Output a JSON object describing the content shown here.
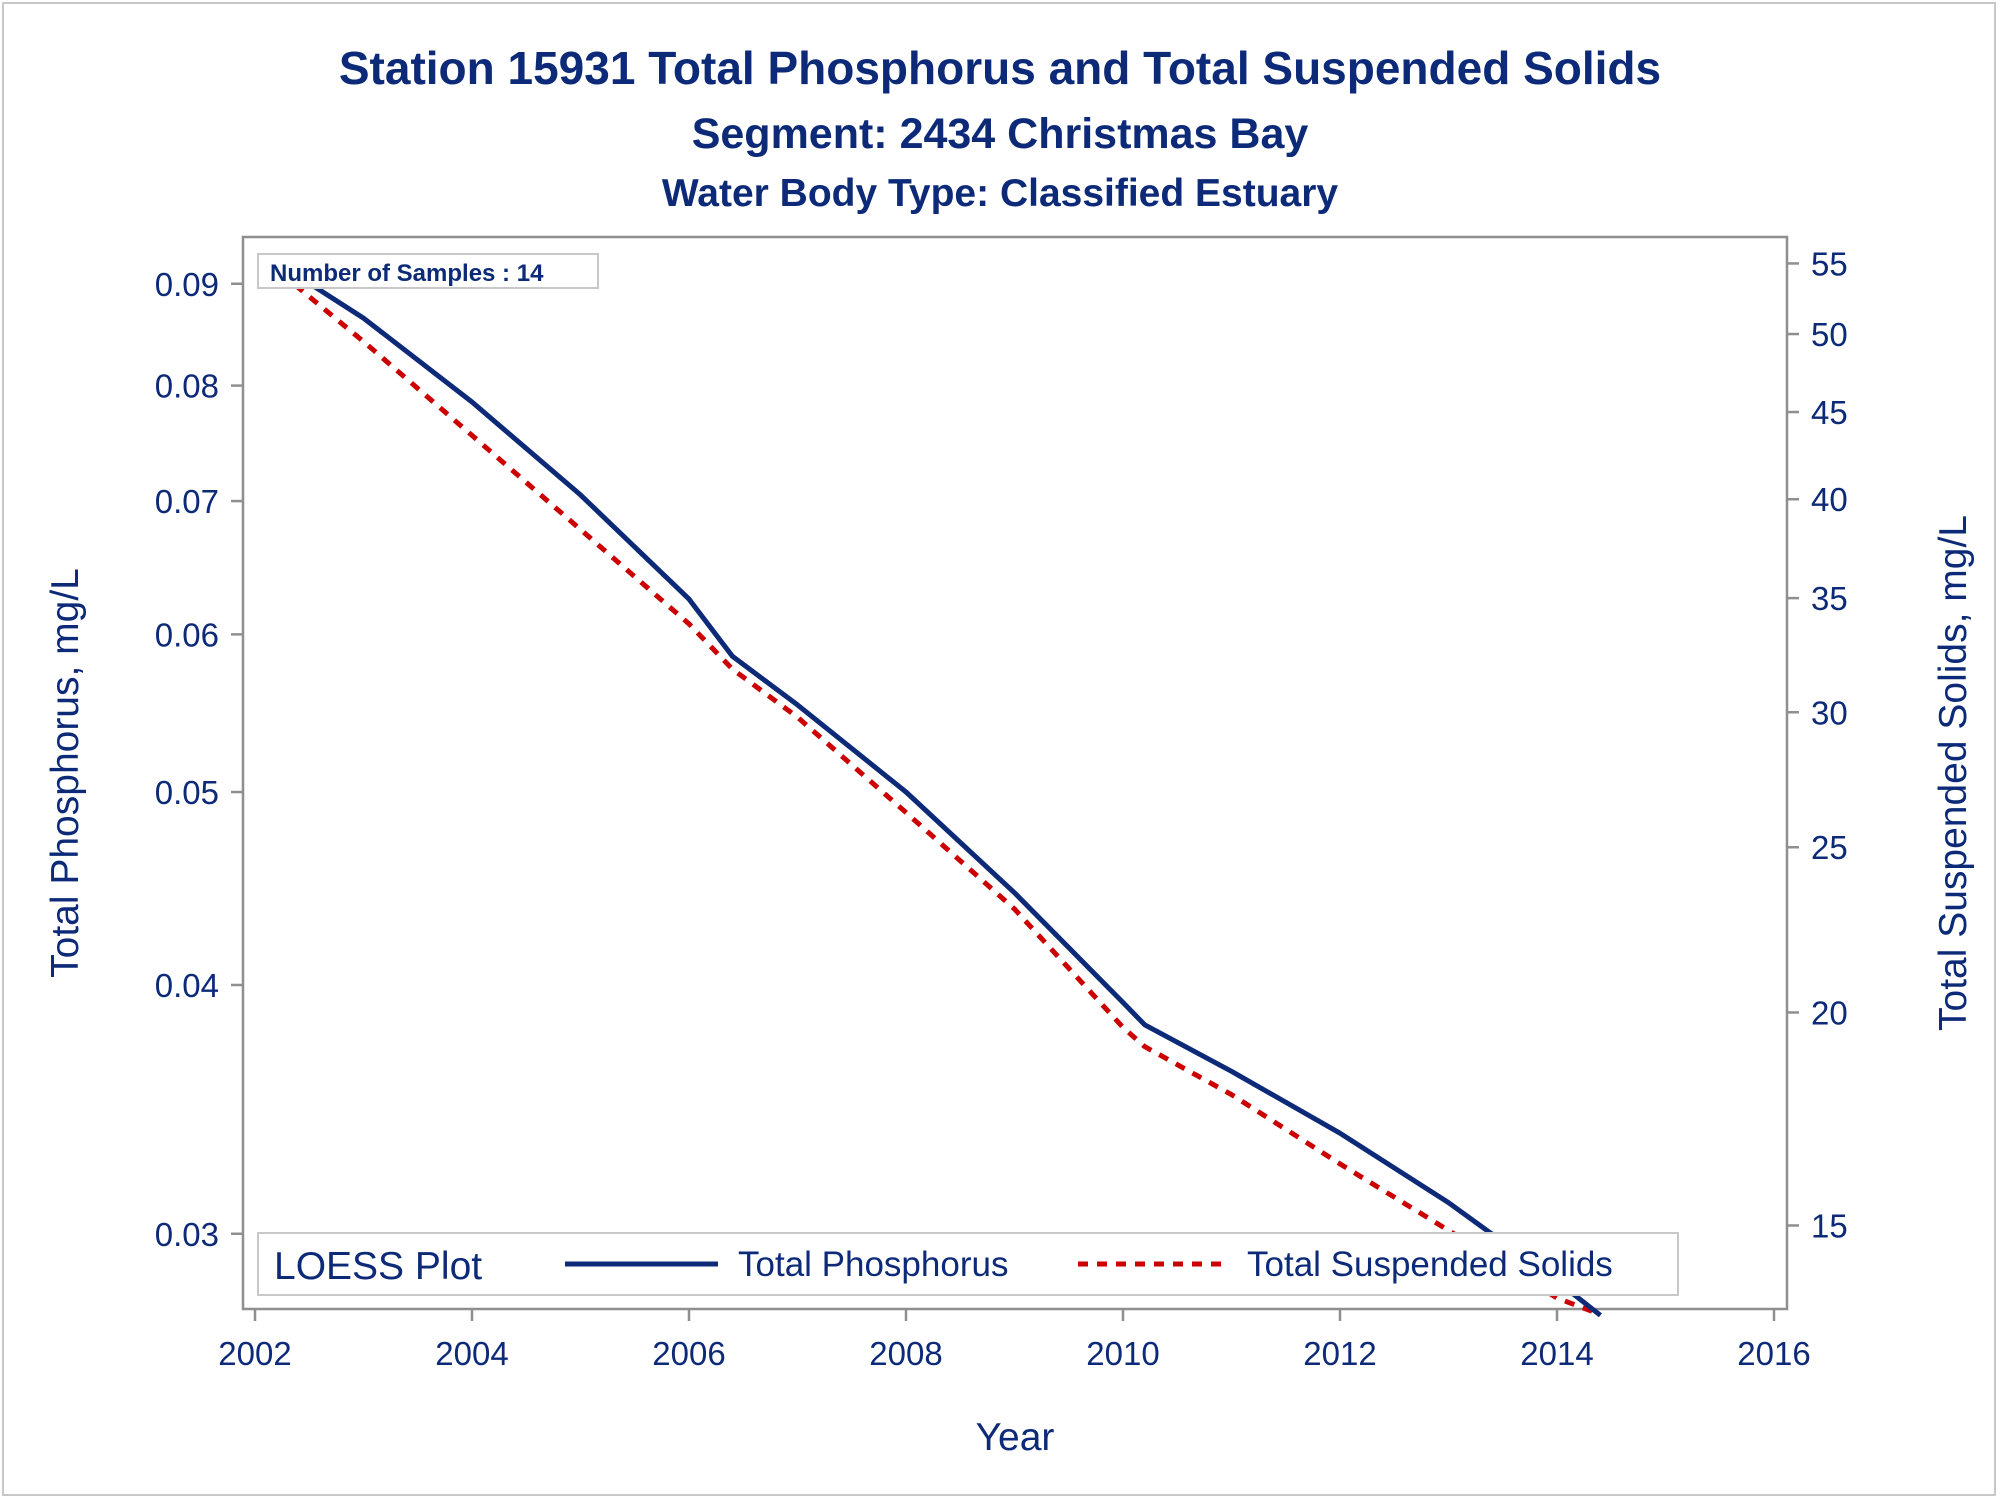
{
  "titles": {
    "line1": "Station 15931  Total Phosphorus and Total Suspended Solids",
    "line2": "Segment: 2434  Christmas Bay",
    "line3": "Water Body Type: Classified Estuary"
  },
  "inset": {
    "text": "Number of Samples : 14"
  },
  "legend": {
    "title": "LOESS Plot",
    "items": [
      {
        "label": "Total Phosphorus"
      },
      {
        "label": "Total Suspended Solids"
      }
    ]
  },
  "colors": {
    "text": "#0c2a78",
    "phosphorus": "#0c2a78",
    "tss": "#cc0000",
    "frame": "#8f8f8f"
  },
  "chart_data": {
    "type": "line",
    "title": "Station 15931  Total Phosphorus and Total Suspended Solids",
    "xlabel": "Year",
    "ylabel": "Total Phosphorus, mg/L",
    "y2label": "Total Suspended Solids, mg/L",
    "y_scale": "log",
    "y2_scale": "log",
    "xlim": [
      2002,
      2016
    ],
    "ylim": [
      0.0275,
      0.095
    ],
    "y2lim": [
      13.4,
      57
    ],
    "x_ticks": [
      "2002",
      "2004",
      "2006",
      "2008",
      "2010",
      "2012",
      "2014",
      "2016"
    ],
    "y_ticks": [
      "0.03",
      "0.04",
      "0.05",
      "0.06",
      "0.07",
      "0.08",
      "0.09"
    ],
    "y2_ticks": [
      "15",
      "20",
      "25",
      "30",
      "35",
      "40",
      "45",
      "50",
      "55"
    ],
    "grid": false,
    "legend_position": "bottom-inside",
    "series": [
      {
        "name": "Total Phosphorus",
        "axis": "left",
        "style": "solid",
        "x": [
          2002.1,
          2003.0,
          2004.0,
          2005.0,
          2006.0,
          2006.4,
          2007.0,
          2008.0,
          2009.0,
          2010.0,
          2010.2,
          2011.0,
          2012.0,
          2013.0,
          2014.0,
          2014.4
        ],
        "y": [
          0.093,
          0.0865,
          0.0785,
          0.0705,
          0.0625,
          0.0585,
          0.0553,
          0.05,
          0.0445,
          0.0392,
          0.0382,
          0.0362,
          0.0337,
          0.0311,
          0.0284,
          0.0273
        ]
      },
      {
        "name": "Total Suspended Solids",
        "axis": "right",
        "style": "dashed",
        "x": [
          2002.1,
          2003.0,
          2004.0,
          2005.0,
          2006.0,
          2006.4,
          2007.0,
          2008.0,
          2009.0,
          2010.0,
          2010.2,
          2011.0,
          2012.0,
          2013.0,
          2014.0,
          2014.4
        ],
        "y": [
          55.2,
          49.5,
          43.6,
          38.4,
          33.8,
          31.8,
          29.8,
          26.2,
          23.0,
          19.6,
          19.1,
          17.9,
          16.3,
          14.9,
          13.6,
          13.3
        ]
      }
    ]
  }
}
